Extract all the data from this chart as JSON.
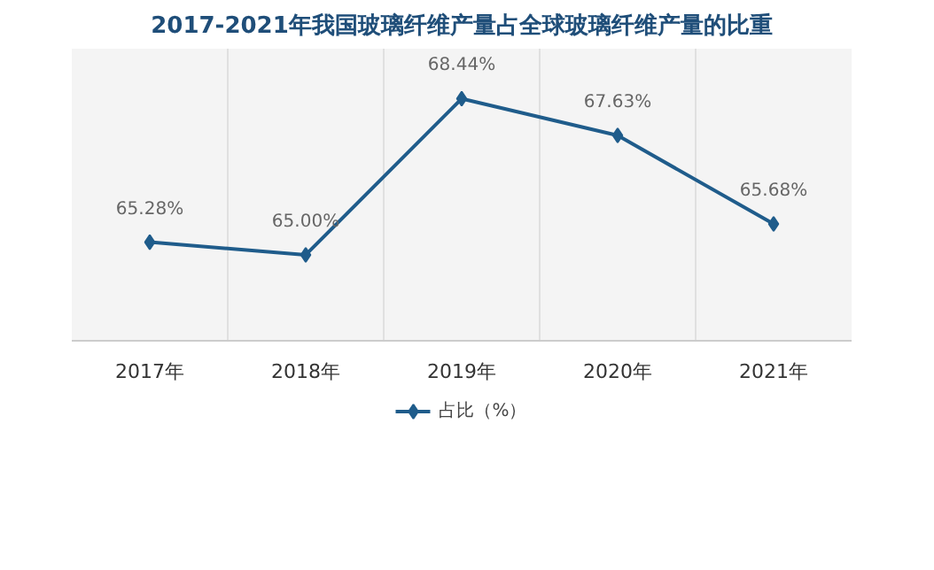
{
  "chart_data": {
    "type": "line",
    "title": "2017-2021年我国玻璃纤维产量占全球玻璃纤维产量的比重",
    "categories": [
      "2017年",
      "2018年",
      "2019年",
      "2020年",
      "2021年"
    ],
    "series": [
      {
        "name": "占比（%）",
        "color": "#1f5c8b",
        "values": [
          65.28,
          65.0,
          68.44,
          67.63,
          65.68
        ],
        "value_labels": [
          "65.28%",
          "65.00%",
          "68.44%",
          "67.63%",
          "65.68%"
        ]
      }
    ],
    "marker": "diamond",
    "line_style": "solid",
    "grid": "x",
    "legend": "bottom",
    "tick_labels": "x"
  }
}
